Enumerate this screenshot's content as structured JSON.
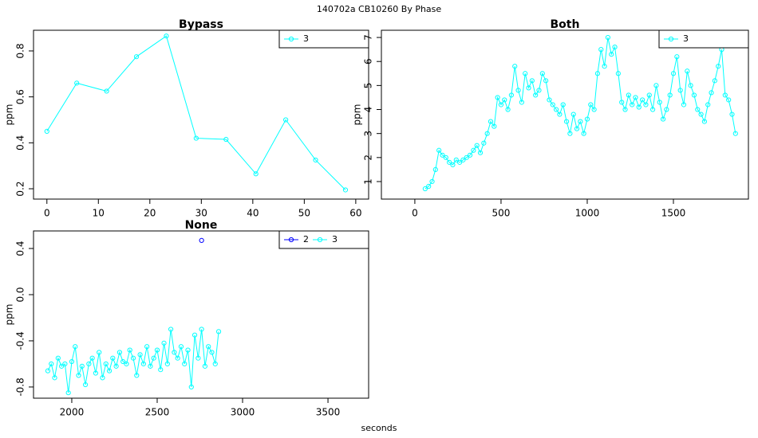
{
  "title": "140702a    CB10260   By Phase",
  "xlabel": "seconds",
  "chart_data": [
    {
      "type": "line",
      "title": "Bypass",
      "ylabel": "ppm",
      "xlim": [
        -2.6,
        62.5
      ],
      "ylim": [
        0.155,
        0.89
      ],
      "xticks": [
        0,
        10,
        20,
        30,
        40,
        50,
        60
      ],
      "yticks": [
        0.2,
        0.4,
        0.6,
        0.8
      ],
      "x": [
        0,
        5.8,
        11.6,
        17.4,
        23.2,
        29,
        34.8,
        40.6,
        46.4,
        52.2,
        58
      ],
      "series": [
        {
          "name": "3",
          "color": "#00ffff",
          "values": [
            0.45,
            0.66,
            0.625,
            0.775,
            0.865,
            0.42,
            0.415,
            0.265,
            0.5,
            0.325,
            0.195
          ]
        }
      ]
    },
    {
      "type": "line",
      "title": "Both",
      "ylabel": "ppm",
      "xlim": [
        -194,
        1935
      ],
      "ylim": [
        0.27,
        7.3
      ],
      "xticks": [
        0,
        500,
        1000,
        1500
      ],
      "yticks": [
        1,
        2,
        3,
        4,
        5,
        6,
        7
      ],
      "x": [
        60,
        80,
        100,
        120,
        140,
        160,
        180,
        200,
        220,
        240,
        260,
        280,
        300,
        320,
        340,
        360,
        380,
        400,
        420,
        440,
        460,
        480,
        500,
        520,
        540,
        560,
        580,
        600,
        620,
        640,
        660,
        680,
        700,
        720,
        740,
        760,
        780,
        800,
        820,
        840,
        860,
        880,
        900,
        920,
        940,
        960,
        980,
        1000,
        1020,
        1040,
        1060,
        1080,
        1100,
        1120,
        1140,
        1160,
        1180,
        1200,
        1220,
        1240,
        1260,
        1280,
        1300,
        1320,
        1340,
        1360,
        1380,
        1400,
        1420,
        1440,
        1460,
        1480,
        1500,
        1520,
        1540,
        1560,
        1580,
        1600,
        1620,
        1640,
        1660,
        1680,
        1700,
        1720,
        1740,
        1760,
        1780,
        1800,
        1820,
        1840,
        1860
      ],
      "series": [
        {
          "name": "3",
          "color": "#00ffff",
          "values": [
            0.7,
            0.8,
            1.0,
            1.5,
            2.3,
            2.1,
            2.0,
            1.8,
            1.7,
            1.9,
            1.8,
            1.9,
            2.0,
            2.1,
            2.3,
            2.5,
            2.2,
            2.6,
            3.0,
            3.5,
            3.3,
            4.5,
            4.2,
            4.4,
            4.0,
            4.6,
            5.8,
            4.8,
            4.3,
            5.5,
            4.9,
            5.2,
            4.6,
            4.8,
            5.5,
            5.2,
            4.4,
            4.2,
            4.0,
            3.8,
            4.2,
            3.5,
            3.0,
            3.8,
            3.2,
            3.5,
            3.0,
            3.6,
            4.2,
            4.0,
            5.5,
            6.5,
            5.8,
            7.0,
            6.3,
            6.6,
            5.5,
            4.3,
            4.0,
            4.6,
            4.2,
            4.5,
            4.1,
            4.4,
            4.2,
            4.6,
            4.0,
            5.0,
            4.3,
            3.6,
            4.0,
            4.6,
            5.5,
            6.2,
            4.8,
            4.2,
            5.6,
            5.0,
            4.6,
            4.0,
            3.8,
            3.5,
            4.2,
            4.7,
            5.2,
            5.8,
            6.5,
            4.6,
            4.4,
            3.8,
            3.0
          ]
        }
      ]
    },
    {
      "type": "line",
      "title": "None",
      "ylabel": "ppm",
      "xlim": [
        1776,
        3738
      ],
      "ylim": [
        -0.897,
        0.552
      ],
      "xticks": [
        2000,
        2500,
        3000,
        3500
      ],
      "yticks": [
        -0.8,
        -0.4,
        {
          "value": 0,
          "label": "0.0"
        },
        0.4
      ],
      "x": [
        1860,
        1880,
        1900,
        1920,
        1940,
        1960,
        1980,
        2000,
        2020,
        2040,
        2060,
        2080,
        2100,
        2120,
        2140,
        2160,
        2180,
        2200,
        2220,
        2240,
        2260,
        2280,
        2300,
        2320,
        2340,
        2360,
        2380,
        2400,
        2420,
        2440,
        2460,
        2480,
        2500,
        2520,
        2540,
        2560,
        2580,
        2600,
        2620,
        2640,
        2660,
        2680,
        2700,
        2720,
        2740,
        2760,
        2780,
        2800,
        2820,
        2840,
        2860
      ],
      "series": [
        {
          "name": "2",
          "color": "#0000ff",
          "values": [
            null,
            null,
            null,
            null,
            null,
            null,
            null,
            null,
            null,
            null,
            null,
            null,
            null,
            null,
            null,
            null,
            null,
            null,
            null,
            null,
            null,
            null,
            null,
            null,
            null,
            null,
            null,
            null,
            null,
            null,
            null,
            null,
            null,
            null,
            null,
            null,
            null,
            null,
            null,
            null,
            null,
            null,
            null,
            null,
            null,
            0.47,
            null,
            null,
            null,
            null,
            null
          ]
        },
        {
          "name": "3",
          "color": "#00ffff",
          "values": [
            -0.66,
            -0.6,
            -0.72,
            -0.55,
            -0.62,
            -0.6,
            -0.85,
            -0.58,
            -0.45,
            -0.7,
            -0.62,
            -0.78,
            -0.6,
            -0.55,
            -0.68,
            -0.5,
            -0.72,
            -0.6,
            -0.66,
            -0.55,
            -0.62,
            -0.5,
            -0.58,
            -0.6,
            -0.48,
            -0.55,
            -0.7,
            -0.52,
            -0.6,
            -0.45,
            -0.62,
            -0.55,
            -0.48,
            -0.65,
            -0.42,
            -0.6,
            -0.3,
            -0.5,
            -0.55,
            -0.45,
            -0.6,
            -0.48,
            -0.8,
            -0.35,
            -0.55,
            -0.3,
            -0.62,
            -0.45,
            -0.5,
            -0.6,
            -0.32
          ]
        }
      ]
    }
  ]
}
